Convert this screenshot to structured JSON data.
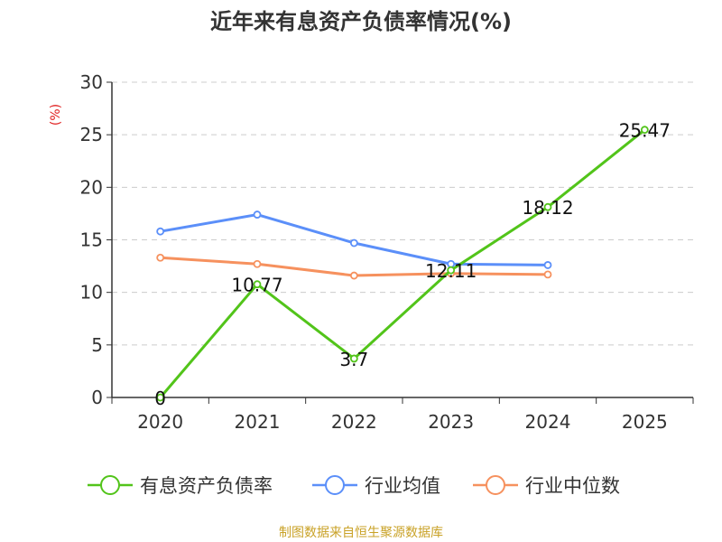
{
  "chart_data": {
    "type": "line",
    "title": "近年来有息资产负债率情况(%)",
    "ylabel": "(%)",
    "xlabel": "",
    "categories": [
      "2020",
      "2021",
      "2022",
      "2023",
      "2024",
      "2025"
    ],
    "ylim": [
      0,
      30
    ],
    "yticks": [
      0,
      5,
      10,
      15,
      20,
      25,
      30
    ],
    "grid": true,
    "legend_position": "bottom",
    "series": [
      {
        "name": "有息资产负债率",
        "color": "#52c41a",
        "values": [
          0,
          10.77,
          3.7,
          12.11,
          18.12,
          25.47
        ],
        "labels": [
          "0",
          "10.77",
          "3.7",
          "12.11",
          "18.12",
          "25.47"
        ]
      },
      {
        "name": "行业均值",
        "color": "#5b8ff9",
        "values": [
          15.8,
          17.4,
          14.7,
          12.7,
          12.6,
          null
        ]
      },
      {
        "name": "行业中位数",
        "color": "#f6915e",
        "values": [
          13.3,
          12.7,
          11.6,
          11.8,
          11.7,
          null
        ]
      }
    ]
  },
  "footer": {
    "source": "制图数据来自恒生聚源数据库"
  }
}
